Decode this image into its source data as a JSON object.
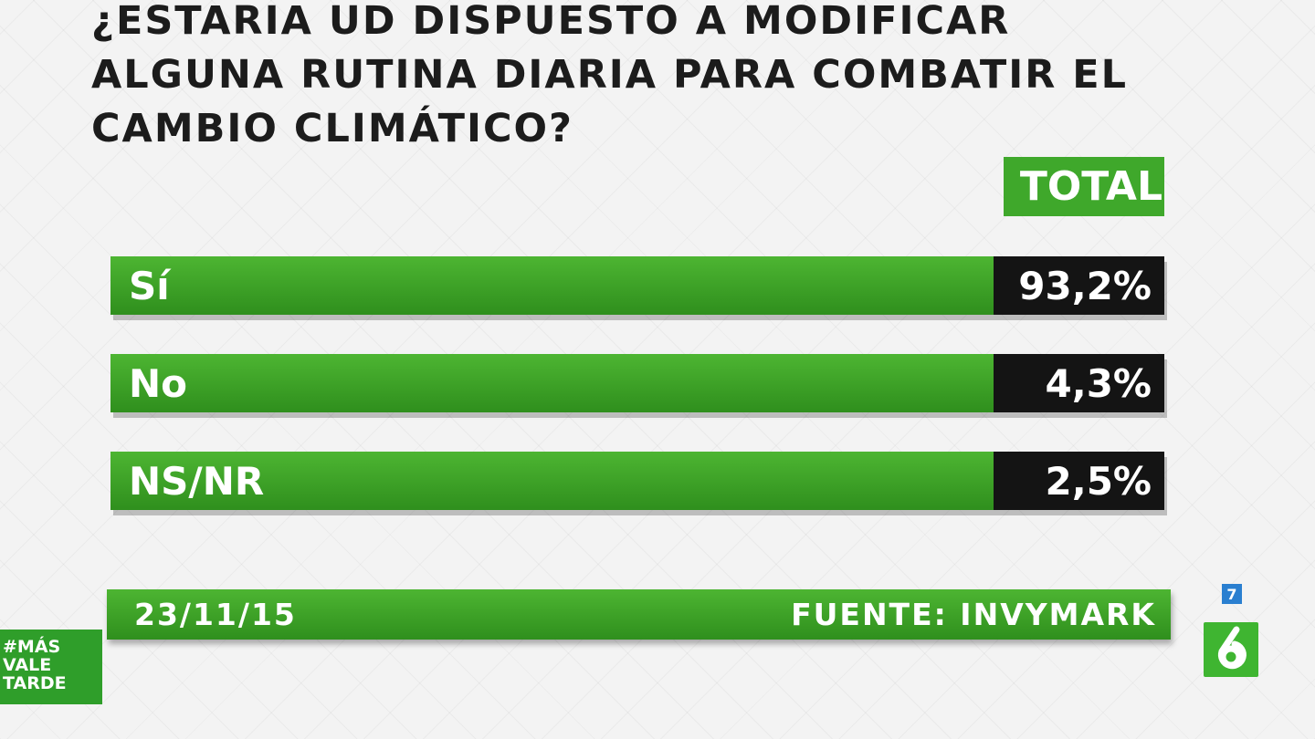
{
  "title": "¿ESTARIA UD DISPUESTO A MODIFICAR ALGUNA RUTINA DIARIA PARA COMBATIR EL CAMBIO CLIMÁTICO?",
  "column_header": "TOTAL",
  "chart_data": {
    "type": "bar",
    "title": "¿ESTARIA UD DISPUESTO A MODIFICAR ALGUNA RUTINA DIARIA PARA COMBATIR EL CAMBIO CLIMÁTICO?",
    "categories": [
      "Sí",
      "No",
      "NS/NR"
    ],
    "values": [
      93.2,
      4.3,
      2.5
    ],
    "value_labels": [
      "93,2%",
      "4,3%",
      "2,5%"
    ],
    "series": [
      {
        "name": "TOTAL",
        "values": [
          93.2,
          4.3,
          2.5
        ]
      }
    ],
    "xlabel": "",
    "ylabel": "",
    "grid": false,
    "colors": {
      "bar": "#3fa82b",
      "value_box": "#141414"
    }
  },
  "footer": {
    "date": "23/11/15",
    "source": "FUENTE: INVYMARK"
  },
  "hashtag": [
    "#MÁS",
    "VALE",
    "TARDE"
  ],
  "channel_badge": "7",
  "channel_logo": "la6-logo-icon"
}
